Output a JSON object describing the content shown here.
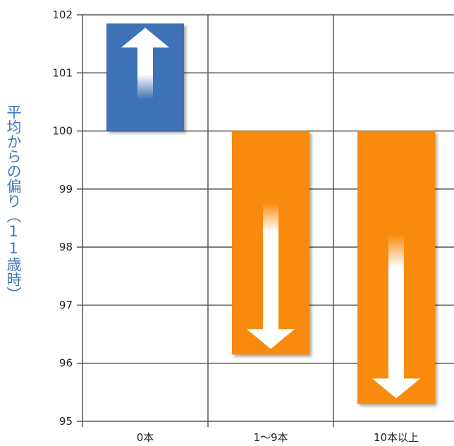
{
  "chart_data": {
    "type": "bar",
    "title": "",
    "ylabel": "平均からの偏り（11歳時）",
    "xlabel": "",
    "categories": [
      "0本",
      "1～9本",
      "10本以上"
    ],
    "baseline": 100,
    "values": [
      101.85,
      96.15,
      95.3
    ],
    "ylim": [
      95,
      102
    ],
    "yticks": [
      95,
      96,
      97,
      98,
      99,
      100,
      101,
      102
    ],
    "grid": true,
    "colors": {
      "above": "#3e72b6",
      "below": "#f88a0e",
      "arrow": "#ffffff",
      "grid": "#555555"
    },
    "arrows": [
      "up",
      "down",
      "down"
    ]
  }
}
